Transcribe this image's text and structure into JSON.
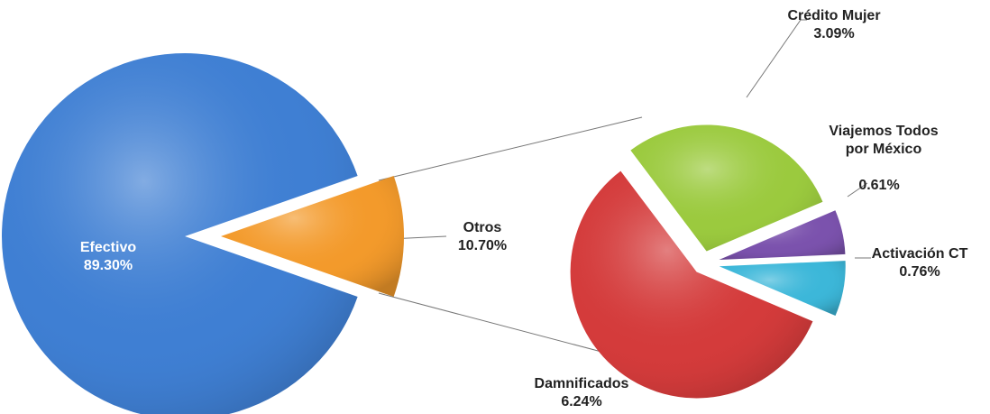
{
  "chart_data": [
    {
      "type": "pie",
      "categories": [
        "Efectivo",
        "Otros"
      ],
      "values": [
        89.3,
        10.7
      ],
      "value_labels": [
        "89.30%",
        "10.70%"
      ],
      "colors": [
        "#3f7fd3",
        "#f39a2b"
      ]
    },
    {
      "type": "pie",
      "categories": [
        "Crédito Mujer",
        "Viajemos Todos por México",
        "Activación CT",
        "Damnificados"
      ],
      "values": [
        3.09,
        0.61,
        0.76,
        6.24
      ],
      "value_labels": [
        "3.09%",
        "0.61%",
        "0.76%",
        "6.24%"
      ],
      "colors": [
        "#9bca3e",
        "#7b52ad",
        "#3cb7d9",
        "#d43b3b"
      ]
    }
  ]
}
